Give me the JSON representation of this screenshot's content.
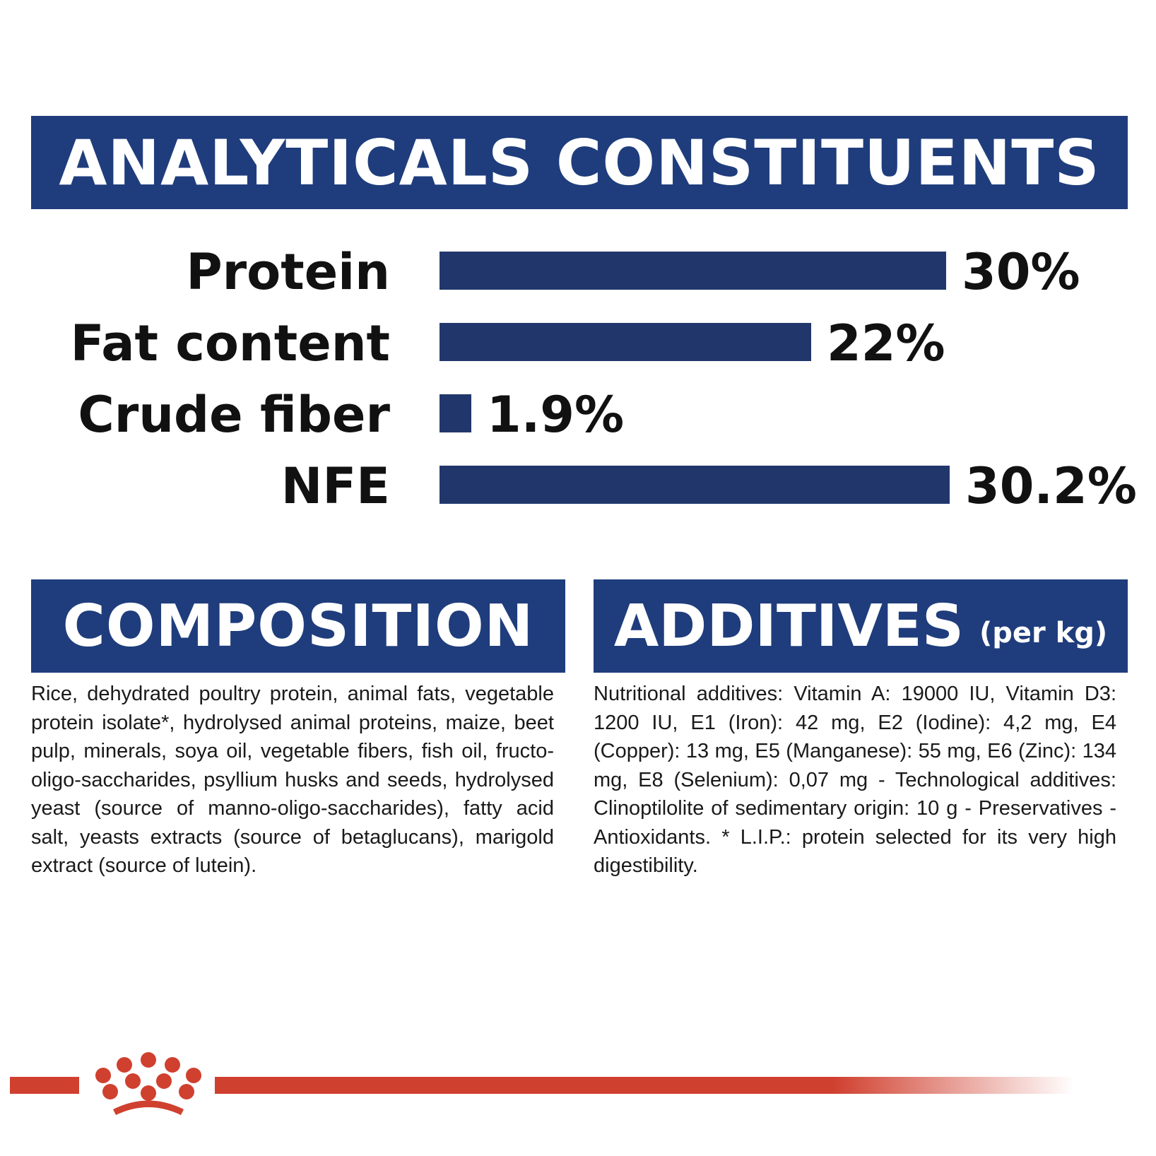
{
  "analytical": {
    "title": "ANALYTICALS CONSTITUENTS"
  },
  "chart_data": {
    "type": "bar",
    "orientation": "horizontal",
    "title": "ANALYTICALS CONSTITUENTS",
    "categories": [
      "Protein",
      "Fat content",
      "Crude fiber",
      "NFE"
    ],
    "values": [
      30,
      22,
      1.9,
      30.2
    ],
    "value_labels": [
      "30%",
      "22%",
      "1.9%",
      "30.2%"
    ],
    "unit": "%",
    "xlim": [
      0,
      30.2
    ],
    "grid": false,
    "bar_color": "#21376c"
  },
  "composition": {
    "title": "COMPOSITION",
    "text": "Rice, dehydrated poultry protein, animal fats, vegetable protein isolate*, hydrolysed animal proteins, maize, beet pulp, minerals, soya oil, vegetable fibers, fish oil, fructo- oligo-saccharides, psyllium husks and seeds, hydrolysed yeast (source of manno-oligo-saccharides), fatty acid salt, yeasts extracts (source of betaglucans), marigold extract (source of lutein)."
  },
  "additives": {
    "title": "ADDITIVES",
    "subtitle": "(per kg)",
    "text": "Nutritional additives: Vitamin A: 19000 IU, Vitamin D3: 1200 IU, E1 (Iron): 42 mg, E2 (Iodine): 4,2 mg, E4 (Copper): 13 mg, E5 (Manganese): 55 mg, E6 (Zinc): 134 mg, E8 (Selenium): 0,07 mg - Technological additives: Clinoptilolite of sedimentary origin: 10 g - Preservatives - Antioxidants. * L.I.P.: protein selected for its very high digestibility."
  },
  "colors": {
    "banner_blue": "#1f3d7c",
    "bar_blue": "#21376c",
    "brand_red": "#d0402f"
  },
  "icons": {
    "brand": "crown-logo-icon"
  }
}
